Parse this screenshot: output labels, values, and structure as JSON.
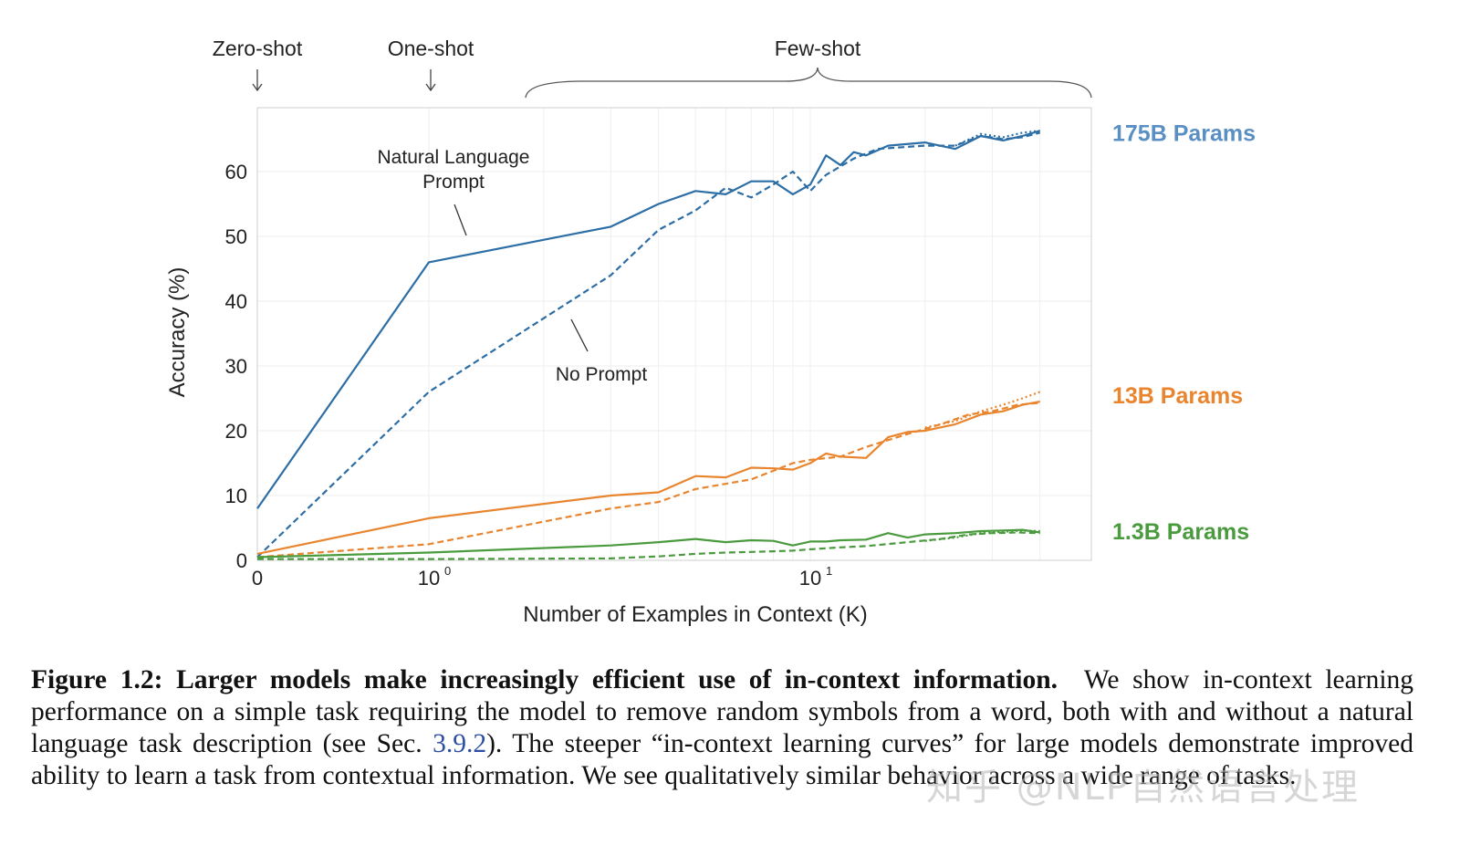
{
  "chart_data": {
    "type": "line",
    "xlabel": "Number of Examples in Context  (K)",
    "ylabel": "Accuracy (%)",
    "xscale": "symlog",
    "xlim": [
      0,
      40
    ],
    "ylim": [
      0,
      67
    ],
    "x_ticks": [
      {
        "value": 0,
        "label": "0",
        "exp": ""
      },
      {
        "value": 1,
        "label": "10",
        "exp": "0"
      },
      {
        "value": 10,
        "label": "10",
        "exp": "1"
      }
    ],
    "y_ticks": [
      0,
      10,
      20,
      30,
      40,
      50,
      60
    ],
    "grid": true,
    "regime_labels": [
      "Zero-shot",
      "One-shot",
      "Few-shot"
    ],
    "annotations": {
      "natural_prompt_line1": "Natural Language",
      "natural_prompt_line2": "Prompt",
      "no_prompt": "No Prompt"
    },
    "series": [
      {
        "name": "175B Params",
        "color": "#2c6ea5",
        "style": "solid",
        "points": [
          [
            0,
            8
          ],
          [
            1,
            46
          ],
          [
            3,
            51.5
          ],
          [
            4,
            55
          ],
          [
            5,
            57
          ],
          [
            6,
            56.5
          ],
          [
            7,
            58.5
          ],
          [
            8,
            58.5
          ],
          [
            9,
            56.5
          ],
          [
            10,
            58
          ],
          [
            11,
            62.5
          ],
          [
            12,
            61
          ],
          [
            13,
            63
          ],
          [
            14,
            62.5
          ],
          [
            16,
            64
          ],
          [
            20,
            64.5
          ],
          [
            24,
            63.5
          ],
          [
            28,
            65.5
          ],
          [
            32,
            64.8
          ],
          [
            36,
            65.5
          ],
          [
            40,
            66.3
          ]
        ]
      },
      {
        "name": "175B Params",
        "color": "#2c6ea5",
        "style": "dashed",
        "points": [
          [
            0,
            0.5
          ],
          [
            1,
            26
          ],
          [
            3,
            44
          ],
          [
            4,
            51
          ],
          [
            5,
            54
          ],
          [
            6,
            57.5
          ],
          [
            7,
            56
          ],
          [
            8,
            58
          ],
          [
            9,
            60
          ],
          [
            10,
            57
          ],
          [
            11,
            59.5
          ],
          [
            13,
            62
          ],
          [
            15,
            63.5
          ],
          [
            20,
            64
          ],
          [
            24,
            64
          ],
          [
            28,
            65.5
          ],
          [
            32,
            65
          ],
          [
            36,
            65.3
          ],
          [
            40,
            66
          ]
        ]
      },
      {
        "name": "175B Params",
        "color": "#2c6ea5",
        "style": "dotted",
        "points": [
          [
            24,
            64
          ],
          [
            28,
            65.8
          ],
          [
            32,
            65.3
          ],
          [
            36,
            66
          ],
          [
            40,
            66.3
          ]
        ]
      },
      {
        "name": "13B Params",
        "color": "#e8852e",
        "style": "solid",
        "points": [
          [
            0,
            1
          ],
          [
            1,
            6.5
          ],
          [
            3,
            10
          ],
          [
            4,
            10.5
          ],
          [
            5,
            13
          ],
          [
            6,
            12.8
          ],
          [
            7,
            14.3
          ],
          [
            8,
            14.2
          ],
          [
            9,
            14
          ],
          [
            10,
            15
          ],
          [
            11,
            16.5
          ],
          [
            12,
            16
          ],
          [
            14,
            15.8
          ],
          [
            16,
            19
          ],
          [
            18,
            19.8
          ],
          [
            20,
            20
          ],
          [
            24,
            21
          ],
          [
            28,
            22.5
          ],
          [
            32,
            23
          ],
          [
            36,
            24
          ],
          [
            40,
            24.5
          ]
        ]
      },
      {
        "name": "13B Params",
        "color": "#e8852e",
        "style": "dashed",
        "points": [
          [
            0,
            0.5
          ],
          [
            1,
            2.5
          ],
          [
            3,
            8
          ],
          [
            4,
            9
          ],
          [
            5,
            11
          ],
          [
            7,
            12.5
          ],
          [
            9,
            15
          ],
          [
            10,
            15.5
          ],
          [
            12,
            16
          ],
          [
            14,
            17.5
          ],
          [
            18,
            19.5
          ],
          [
            22,
            21
          ],
          [
            26,
            22.5
          ],
          [
            30,
            23
          ],
          [
            35,
            24
          ],
          [
            40,
            24.3
          ]
        ]
      },
      {
        "name": "13B Params",
        "color": "#e8852e",
        "style": "dotted",
        "points": [
          [
            20,
            20.5
          ],
          [
            24,
            21.5
          ],
          [
            28,
            23
          ],
          [
            32,
            24
          ],
          [
            36,
            25
          ],
          [
            40,
            26
          ]
        ]
      },
      {
        "name": "1.3B Params",
        "color": "#4a9a3e",
        "style": "solid",
        "points": [
          [
            0,
            0.5
          ],
          [
            1,
            1.2
          ],
          [
            3,
            2.3
          ],
          [
            4,
            2.8
          ],
          [
            5,
            3.3
          ],
          [
            6,
            2.8
          ],
          [
            7,
            3.1
          ],
          [
            8,
            3
          ],
          [
            9,
            2.3
          ],
          [
            10,
            2.9
          ],
          [
            11,
            2.9
          ],
          [
            12,
            3.1
          ],
          [
            14,
            3.2
          ],
          [
            16,
            4.2
          ],
          [
            18,
            3.5
          ],
          [
            20,
            4
          ],
          [
            24,
            4.2
          ],
          [
            28,
            4.5
          ],
          [
            32,
            4.6
          ],
          [
            36,
            4.7
          ],
          [
            40,
            4.3
          ]
        ]
      },
      {
        "name": "1.3B Params",
        "color": "#4a9a3e",
        "style": "dashed",
        "points": [
          [
            0,
            0.2
          ],
          [
            1,
            0.2
          ],
          [
            3,
            0.3
          ],
          [
            4,
            0.6
          ],
          [
            5,
            1
          ],
          [
            6,
            1.2
          ],
          [
            7,
            1.3
          ],
          [
            8,
            1.4
          ],
          [
            9,
            1.5
          ],
          [
            10,
            1.7
          ],
          [
            12,
            2
          ],
          [
            14,
            2.2
          ],
          [
            18,
            2.8
          ],
          [
            22,
            3.3
          ],
          [
            26,
            4
          ],
          [
            30,
            4.2
          ],
          [
            35,
            4.3
          ],
          [
            40,
            4.2
          ]
        ]
      },
      {
        "name": "1.3B Params",
        "color": "#4a9a3e",
        "style": "dotted",
        "points": [
          [
            20,
            3
          ],
          [
            24,
            3.5
          ],
          [
            28,
            4.2
          ],
          [
            32,
            4.4
          ],
          [
            36,
            4.6
          ],
          [
            40,
            4.5
          ]
        ]
      }
    ],
    "legend_labels": [
      {
        "text": "175B Params",
        "color": "#5a8fc4",
        "y": 66
      },
      {
        "text": "13B Params",
        "color": "#e8852e",
        "y": 25.5
      },
      {
        "text": "1.3B Params",
        "color": "#4a9a3e",
        "y": 4.5
      }
    ]
  },
  "caption": {
    "figure_label": "Figure 1.2:",
    "bold_title": "Larger models make increasingly efficient use of in-context information.",
    "text_before_ref": "We show in-context learning performance on a simple task requiring the model to remove random symbols from a word, both with and without a natural language task description (see Sec.",
    "ref": "3.9.2",
    "text_after_ref": "). The steeper “in-context learning curves” for large models demonstrate improved ability to learn a task from contextual information. We see qualitatively similar behavior across a wide range of tasks."
  },
  "watermark": "知乎 @NLP自然语言处理"
}
